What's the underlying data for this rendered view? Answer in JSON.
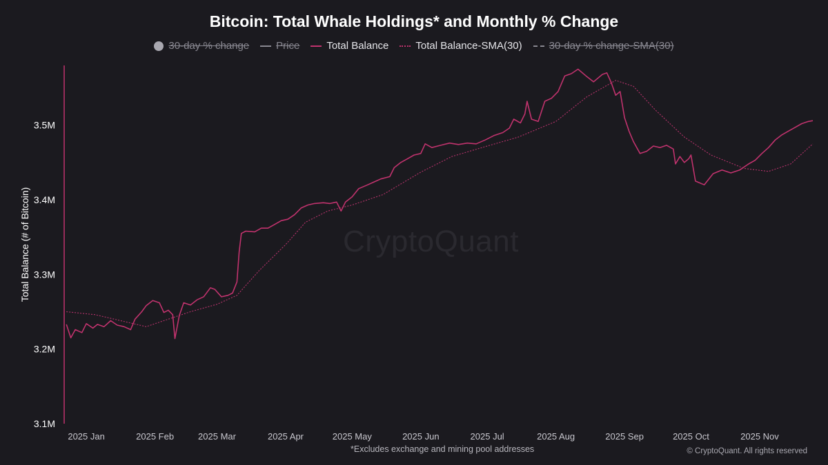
{
  "title": "Bitcoin: Total Whale Holdings* and Monthly % Change",
  "legend": [
    {
      "label": "30-day % change",
      "symbol": "dot",
      "active": false
    },
    {
      "label": "Price",
      "symbol": "solid-gray",
      "active": false
    },
    {
      "label": "Total Balance",
      "symbol": "solid-pink",
      "active": true
    },
    {
      "label": "Total Balance-SMA(30)",
      "symbol": "dotted-pink",
      "active": true
    },
    {
      "label": "30-day % change-SMA(30)",
      "symbol": "dashed-gray",
      "active": false
    }
  ],
  "watermark": "CryptoQuant",
  "footnote": "*Excludes exchange and mining pool addresses",
  "copyright": "© CryptoQuant. All rights reserved",
  "colors": {
    "background": "#1b1a1f",
    "balance": "#c2336e",
    "sma": "#b8336c",
    "axis": "#c2336e"
  },
  "chart_data": {
    "type": "line",
    "title": "Bitcoin: Total Whale Holdings* and Monthly % Change",
    "ylabel": "Total Balance (# of Bitcoin)",
    "xlabel": "",
    "ylim": [
      3100000,
      3580000
    ],
    "x_range": [
      "2024-12-22",
      "2025-11-25"
    ],
    "yticks": [
      {
        "value": 3100000,
        "label": "3.1M"
      },
      {
        "value": 3200000,
        "label": "3.2M"
      },
      {
        "value": 3300000,
        "label": "3.3M"
      },
      {
        "value": 3400000,
        "label": "3.4M"
      },
      {
        "value": 3500000,
        "label": "3.5M"
      }
    ],
    "xticks": [
      {
        "date": "2025-01-01",
        "label": "2025 Jan"
      },
      {
        "date": "2025-02-01",
        "label": "2025 Feb"
      },
      {
        "date": "2025-03-01",
        "label": "2025 Mar"
      },
      {
        "date": "2025-04-01",
        "label": "2025 Apr"
      },
      {
        "date": "2025-05-01",
        "label": "2025 May"
      },
      {
        "date": "2025-06-01",
        "label": "2025 Jun"
      },
      {
        "date": "2025-07-01",
        "label": "2025 Jul"
      },
      {
        "date": "2025-08-01",
        "label": "2025 Aug"
      },
      {
        "date": "2025-09-01",
        "label": "2025 Sep"
      },
      {
        "date": "2025-10-01",
        "label": "2025 Oct"
      },
      {
        "date": "2025-11-01",
        "label": "2025 Nov"
      }
    ],
    "grid": false,
    "legend_position": "top-center",
    "series": [
      {
        "name": "Total Balance",
        "style": "solid",
        "points": [
          [
            "2024-12-23",
            3233000
          ],
          [
            "2024-12-25",
            3215000
          ],
          [
            "2024-12-27",
            3226000
          ],
          [
            "2024-12-30",
            3222000
          ],
          [
            "2025-01-01",
            3234000
          ],
          [
            "2025-01-04",
            3228000
          ],
          [
            "2025-01-06",
            3233000
          ],
          [
            "2025-01-09",
            3230000
          ],
          [
            "2025-01-12",
            3238000
          ],
          [
            "2025-01-15",
            3232000
          ],
          [
            "2025-01-18",
            3230000
          ],
          [
            "2025-01-21",
            3226000
          ],
          [
            "2025-01-23",
            3240000
          ],
          [
            "2025-01-26",
            3250000
          ],
          [
            "2025-01-28",
            3258000
          ],
          [
            "2025-01-31",
            3265000
          ],
          [
            "2025-02-03",
            3262000
          ],
          [
            "2025-02-05",
            3249000
          ],
          [
            "2025-02-07",
            3252000
          ],
          [
            "2025-02-09",
            3246000
          ],
          [
            "2025-02-10",
            3214000
          ],
          [
            "2025-02-12",
            3245000
          ],
          [
            "2025-02-14",
            3262000
          ],
          [
            "2025-02-17",
            3259000
          ],
          [
            "2025-02-20",
            3266000
          ],
          [
            "2025-02-23",
            3270000
          ],
          [
            "2025-02-26",
            3282000
          ],
          [
            "2025-02-28",
            3280000
          ],
          [
            "2025-03-03",
            3270000
          ],
          [
            "2025-03-06",
            3272000
          ],
          [
            "2025-03-08",
            3275000
          ],
          [
            "2025-03-10",
            3290000
          ],
          [
            "2025-03-11",
            3330000
          ],
          [
            "2025-03-12",
            3355000
          ],
          [
            "2025-03-14",
            3358000
          ],
          [
            "2025-03-18",
            3357000
          ],
          [
            "2025-03-21",
            3362000
          ],
          [
            "2025-03-24",
            3362000
          ],
          [
            "2025-03-27",
            3367000
          ],
          [
            "2025-03-30",
            3372000
          ],
          [
            "2025-04-02",
            3374000
          ],
          [
            "2025-04-05",
            3380000
          ],
          [
            "2025-04-08",
            3389000
          ],
          [
            "2025-04-11",
            3393000
          ],
          [
            "2025-04-14",
            3395000
          ],
          [
            "2025-04-18",
            3396000
          ],
          [
            "2025-04-21",
            3395000
          ],
          [
            "2025-04-24",
            3397000
          ],
          [
            "2025-04-26",
            3385000
          ],
          [
            "2025-04-28",
            3397000
          ],
          [
            "2025-05-01",
            3404000
          ],
          [
            "2025-05-04",
            3415000
          ],
          [
            "2025-05-08",
            3420000
          ],
          [
            "2025-05-11",
            3424000
          ],
          [
            "2025-05-14",
            3428000
          ],
          [
            "2025-05-18",
            3431000
          ],
          [
            "2025-05-20",
            3443000
          ],
          [
            "2025-05-23",
            3450000
          ],
          [
            "2025-05-26",
            3455000
          ],
          [
            "2025-05-29",
            3460000
          ],
          [
            "2025-06-01",
            3462000
          ],
          [
            "2025-06-03",
            3475000
          ],
          [
            "2025-06-06",
            3470000
          ],
          [
            "2025-06-10",
            3473000
          ],
          [
            "2025-06-14",
            3476000
          ],
          [
            "2025-06-18",
            3474000
          ],
          [
            "2025-06-22",
            3476000
          ],
          [
            "2025-06-26",
            3475000
          ],
          [
            "2025-06-30",
            3480000
          ],
          [
            "2025-07-04",
            3486000
          ],
          [
            "2025-07-08",
            3490000
          ],
          [
            "2025-07-11",
            3496000
          ],
          [
            "2025-07-13",
            3508000
          ],
          [
            "2025-07-16",
            3503000
          ],
          [
            "2025-07-18",
            3515000
          ],
          [
            "2025-07-19",
            3532000
          ],
          [
            "2025-07-21",
            3508000
          ],
          [
            "2025-07-24",
            3505000
          ],
          [
            "2025-07-27",
            3532000
          ],
          [
            "2025-07-30",
            3536000
          ],
          [
            "2025-08-02",
            3545000
          ],
          [
            "2025-08-05",
            3566000
          ],
          [
            "2025-08-08",
            3569000
          ],
          [
            "2025-08-11",
            3575000
          ],
          [
            "2025-08-15",
            3565000
          ],
          [
            "2025-08-18",
            3558000
          ],
          [
            "2025-08-22",
            3568000
          ],
          [
            "2025-08-24",
            3570000
          ],
          [
            "2025-08-26",
            3557000
          ],
          [
            "2025-08-28",
            3540000
          ],
          [
            "2025-08-30",
            3545000
          ],
          [
            "2025-09-01",
            3510000
          ],
          [
            "2025-09-03",
            3492000
          ],
          [
            "2025-09-05",
            3478000
          ],
          [
            "2025-09-08",
            3462000
          ],
          [
            "2025-09-11",
            3465000
          ],
          [
            "2025-09-14",
            3472000
          ],
          [
            "2025-09-17",
            3470000
          ],
          [
            "2025-09-20",
            3473000
          ],
          [
            "2025-09-23",
            3468000
          ],
          [
            "2025-09-24",
            3448000
          ],
          [
            "2025-09-26",
            3458000
          ],
          [
            "2025-09-28",
            3450000
          ],
          [
            "2025-09-30",
            3455000
          ],
          [
            "2025-10-01",
            3460000
          ],
          [
            "2025-10-03",
            3425000
          ],
          [
            "2025-10-07",
            3420000
          ],
          [
            "2025-10-11",
            3435000
          ],
          [
            "2025-10-15",
            3440000
          ],
          [
            "2025-10-19",
            3436000
          ],
          [
            "2025-10-23",
            3440000
          ],
          [
            "2025-10-27",
            3448000
          ],
          [
            "2025-10-30",
            3453000
          ],
          [
            "2025-11-02",
            3462000
          ],
          [
            "2025-11-05",
            3470000
          ],
          [
            "2025-11-08",
            3480000
          ],
          [
            "2025-11-11",
            3487000
          ],
          [
            "2025-11-14",
            3492000
          ],
          [
            "2025-11-17",
            3497000
          ],
          [
            "2025-11-20",
            3502000
          ],
          [
            "2025-11-23",
            3505000
          ],
          [
            "2025-11-25",
            3506000
          ]
        ]
      },
      {
        "name": "Total Balance-SMA(30)",
        "style": "dotted",
        "points": [
          [
            "2024-12-23",
            3250000
          ],
          [
            "2025-01-05",
            3246000
          ],
          [
            "2025-01-18",
            3237000
          ],
          [
            "2025-01-28",
            3230000
          ],
          [
            "2025-02-07",
            3240000
          ],
          [
            "2025-02-17",
            3250000
          ],
          [
            "2025-03-01",
            3260000
          ],
          [
            "2025-03-10",
            3272000
          ],
          [
            "2025-03-20",
            3305000
          ],
          [
            "2025-04-01",
            3340000
          ],
          [
            "2025-04-10",
            3370000
          ],
          [
            "2025-04-20",
            3385000
          ],
          [
            "2025-05-01",
            3393000
          ],
          [
            "2025-05-15",
            3407000
          ],
          [
            "2025-06-01",
            3437000
          ],
          [
            "2025-06-15",
            3458000
          ],
          [
            "2025-07-01",
            3472000
          ],
          [
            "2025-07-15",
            3484000
          ],
          [
            "2025-08-01",
            3505000
          ],
          [
            "2025-08-15",
            3538000
          ],
          [
            "2025-08-28",
            3560000
          ],
          [
            "2025-09-05",
            3552000
          ],
          [
            "2025-09-15",
            3520000
          ],
          [
            "2025-09-28",
            3484000
          ],
          [
            "2025-10-10",
            3460000
          ],
          [
            "2025-10-25",
            3442000
          ],
          [
            "2025-11-05",
            3438000
          ],
          [
            "2025-11-15",
            3448000
          ],
          [
            "2025-11-25",
            3475000
          ]
        ]
      }
    ]
  }
}
